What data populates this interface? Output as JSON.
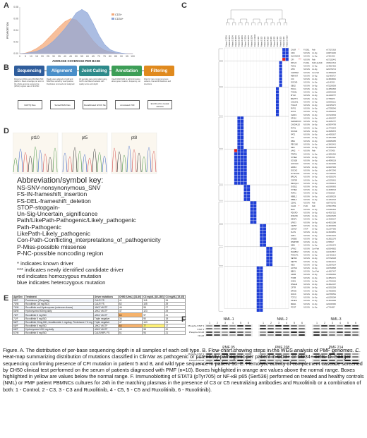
{
  "panels": {
    "A": "A",
    "B": "B",
    "C": "C",
    "D": "D",
    "E": "E",
    "F": "F"
  },
  "chart_data": {
    "type": "area",
    "xlabel": "AVERAGE COVERAGE PER BASE",
    "ylabel": "PROPORTION",
    "x": [
      0,
      5,
      10,
      15,
      20,
      25,
      30,
      35,
      40,
      45,
      50,
      55,
      60,
      65,
      70,
      75,
      80,
      85,
      90,
      95,
      100
    ],
    "ylim": [
      0,
      0.08
    ],
    "yticks": [
      "0.08",
      "0.06",
      "0.04",
      "0.02",
      "0.00"
    ],
    "xticks": [
      "0",
      "5",
      "10",
      "15",
      "20",
      "25",
      "30",
      "35",
      "40",
      "45",
      "50",
      "55",
      "60",
      "65",
      "70",
      "75",
      "80",
      "85",
      "90",
      "95",
      "100"
    ],
    "series": [
      {
        "name": "CD3+",
        "color": "#f4a97a",
        "values": [
          0,
          0.001,
          0.004,
          0.009,
          0.016,
          0.026,
          0.036,
          0.046,
          0.055,
          0.06,
          0.058,
          0.048,
          0.035,
          0.022,
          0.012,
          0.006,
          0.003,
          0.001,
          0,
          0,
          0
        ]
      },
      {
        "name": "CD34+",
        "color": "#8fa7d8",
        "values": [
          0,
          0.0005,
          0.002,
          0.004,
          0.008,
          0.014,
          0.022,
          0.032,
          0.043,
          0.056,
          0.07,
          0.076,
          0.07,
          0.052,
          0.032,
          0.016,
          0.007,
          0.003,
          0.001,
          0,
          0
        ]
      }
    ]
  },
  "workflow": {
    "steps": [
      {
        "label": "Sequencing",
        "color": "#2f5d9c",
        "text": "Paired end DNA using BGISEQ-500 platform. Mean coverage per exon in the whole-genome sequencing (WGS) regions was of 40-150x"
      },
      {
        "label": "Alignment",
        "color": "#4a8fc9",
        "text": "Reads were aligned to hg19 and BAM files sorted by read position, Duplicates removed and realigned"
      },
      {
        "label": "Joint Calling",
        "color": "#2e8b8b",
        "text": "All samples were joint called using GATK and filtered variants with quality score and depth"
      },
      {
        "label": "Annotation",
        "color": "#3d9e57",
        "text": "Used ANNOVAR to add information about gene, location, frequency, etc."
      },
      {
        "label": "Filtering",
        "color": "#e08a1e",
        "text": "Filter for rare nonsynonymous variants, frameshift deletions and insertions"
      }
    ],
    "outputs": [
      "FASTQ files",
      "Sorted BAM files",
      "Recalibrated GVCF file",
      "Annotated VCF",
      "Enriched for causal variants"
    ]
  },
  "sanger": {
    "labels": [
      "pt10",
      "pt5",
      "pt8"
    ]
  },
  "key": {
    "title": "Abbreviation/symbol key:",
    "lines": [
      "NS-SNV-nonsynonymous_SNV",
      "FS-IN-frameshift_insertion",
      "FS-DEL-frameshift_deletion",
      "STOP-stopgain-",
      "Un-Sig-Uncertain_significance",
      "Path/LikePath-Pathogenic/Likely_pathogenic",
      "Path-Pathogenic",
      "LikePath-Likely_pathogenic",
      "Con-Path-Conflicting_interpretations_of_pathogenicity",
      "P-Miss-possible missense",
      "P-NC-possible noncoding region"
    ],
    "notes": [
      "* indicates known driver",
      "*** indicates newly identified candidate driver",
      "red indicates homozygous mutation",
      "blue indicates heterozygous mutation"
    ]
  },
  "heatmap": {
    "columns": [
      "Patient 1 CD34",
      "Patient 2 CD34",
      "Patient 3 CD34",
      "Patient 4 CD34",
      "Patient 5 CD34",
      "Patient 6 CD34",
      "Patient 7 CD34",
      "Patient 8 CD34",
      "Patient 9 CD34",
      "Patient 10 CD34",
      "Patient 1 CD3",
      "Patient 2 CD3",
      "Patient 3 CD3",
      "Patient 4 CD3",
      "Patient 5 CD3",
      "Patient 6 CD3",
      "Patient 7 CD3",
      "Patient 8 CD3",
      "Patient 9 CD3",
      "Patient 10 CD3"
    ],
    "blue": "#1f3fd6",
    "red": "#e02222",
    "genes": [
      "CALR",
      "CDC",
      "SLC25A44",
      "CFI",
      "RPL22",
      "TDG1",
      "ATM",
      "CHRNA6",
      "RBPJK7",
      "CIC",
      "DOCK9",
      "SBS2",
      "POLG",
      "TONSL",
      "MYLK",
      "BARTYI",
      "COL5A1",
      "TOLLIP",
      "RYR1",
      "RYR1",
      "U2AF1",
      "SP110",
      "SH3GRCC3",
      "CACNA1G",
      "RYR1",
      "NCOA3",
      "FAT1",
      "CIC",
      "DBH",
      "PEX100",
      "NES",
      "JAK2",
      "TRIP11",
      "SYNE2",
      "SCN1B",
      "HOXA10",
      "GRIK4",
      "DOCK2",
      "DYNC1H1",
      "BRCA2",
      "CSF3R",
      "RECQL4",
      "DIS3L2",
      "SYNE2",
      "IRAK1",
      "NBEL2",
      "NBEL2",
      "CDH1",
      "CALR",
      "BLM",
      "PDGFD",
      "ZNF236",
      "DEAF1",
      "LRIG3",
      "CEP57",
      "CDH17",
      "FLCN",
      "LRP1",
      "SH2B3",
      "DNMT3B",
      "NEB",
      "LPIN2",
      "RHABF2",
      "PHACT1",
      "SETD2",
      "SEPT9",
      "NES",
      "ACTN2",
      "BBS1",
      "AFDB",
      "TNXB",
      "GSE1",
      "DNAH3",
      "CFTR",
      "EP300",
      "DOCK",
      "TCF12",
      "PKHD1",
      "MEN1",
      "PCNT"
    ],
    "details": [
      [
        "FS-DEL",
        "Path",
        "rs773371618"
      ],
      [
        "NS-SNV",
        "Un-Sig",
        "rs368742180"
      ],
      [
        "NS-SNV",
        "Un-Sig",
        "rs73013418"
      ],
      [
        "NS-SNV",
        "Path",
        "rs371315441"
      ],
      [
        "FS-DEL",
        "Path/LikePath",
        "rs565221644"
      ],
      [
        "NS-SNV",
        "Un-Sig",
        "rs145517815"
      ],
      [
        "NS-SNV",
        "Un-Sig",
        "rs201762714"
      ],
      [
        "NS-SNV",
        "Con-Path",
        "rs139669225"
      ],
      [
        "NS-SNV",
        "Un-Sig",
        "rs114995727"
      ],
      [
        "NS-SNV",
        "Un-Sig",
        "rs138948991"
      ],
      [
        "NS-SNV",
        "Un-Sig",
        "rs11462910"
      ],
      [
        "NS-SNV",
        "Un-Sig",
        "rs752269508"
      ],
      [
        "NS-SNV",
        "Un-Sig",
        "rs149564836"
      ],
      [
        "NS-SNV",
        "Un-Sig",
        "rs565932188"
      ],
      [
        "NS-SNV",
        "Un-Sig",
        "rs141903757"
      ],
      [
        "NS-SNV",
        "Un-Sig",
        "rs77966676"
      ],
      [
        "NS-SNV",
        "Un-Sig",
        "rs200692211"
      ],
      [
        "NS-SNV",
        "Un-Sig",
        "rs115456175"
      ],
      [
        "NS-SNV",
        "Un-Sig",
        "rs372955946"
      ],
      [
        "NS-SNV",
        "Un-Sig",
        "rs126593432"
      ],
      [
        "NS-SNV",
        "Un-Sig",
        "rs371246329"
      ],
      [
        "NS-SNV",
        "Un-Sig",
        "rs146662297"
      ],
      [
        "NS-SNV",
        "Un-Sig",
        "rs142051757"
      ],
      [
        "NS-SNV",
        "Un-Sig",
        "rs199974789"
      ],
      [
        "NS-SNV",
        "Un-Sig",
        "rs147723644"
      ],
      [
        "NS-SNV",
        "Un-Sig",
        "rs139056675"
      ],
      [
        "NS-SNV",
        "Un-Sig",
        "rs144592637"
      ],
      [
        "NS-SNV",
        "Un-Sig",
        "rs146574688"
      ],
      [
        "NS-SNV",
        "Un-Sig",
        "rs369954955"
      ],
      [
        "NS-SNV",
        "Un-Sig",
        "rs138419401"
      ],
      [
        "NS-SNV",
        "Un-Sig",
        "rs139969128"
      ],
      [
        "NS-SNV",
        "Path",
        "rs77375493"
      ],
      [
        "NS-SNV",
        "Un-Sig",
        "rs138551506"
      ],
      [
        "NS-SNV",
        "Un-Sig",
        "rs75487206"
      ],
      [
        "NS-SNV",
        "Un-Sig",
        "rs148990138"
      ],
      [
        "NS-SNV",
        "Un-Sig",
        "rs140242084"
      ],
      [
        "NS-SNV",
        "Un-Sig",
        "rs193187466"
      ],
      [
        "NS-SNV",
        "Un-Sig",
        "rs145472945"
      ],
      [
        "NS-SNV",
        "Un-Sig",
        "rs377966381"
      ],
      [
        "NS-SNV",
        "Un-Sig",
        "rs142553076"
      ],
      [
        "NS-SNV",
        "Un-Sig",
        "rs151293601"
      ],
      [
        "NS-SNV",
        "Un-Sig",
        "rs372669414"
      ],
      [
        "NS-SNV",
        "Un-Sig",
        "rs181690863"
      ],
      [
        "NS-SNV",
        "Un-Sig",
        "rs146089343"
      ],
      [
        "NS-SNV",
        "Un-Sig",
        "rs75602028"
      ],
      [
        "NS-SNV",
        "Un-Sig",
        "rs201859218"
      ],
      [
        "NS-SNV",
        "Un-Sig",
        "rs144632323"
      ],
      [
        "NS-SNV",
        "Path",
        "rs587782750"
      ],
      [
        "FS-IN",
        "Path",
        "rs765470509"
      ],
      [
        "NS-SNV",
        "Un-Sig",
        "rs781851815"
      ],
      [
        "NS-SNV",
        "Un-Sig",
        "rs149017522"
      ],
      [
        "NS-SNV",
        "Un-Sig",
        "rs200225265"
      ],
      [
        "NS-SNV",
        "Un-Sig",
        "rs146382167"
      ],
      [
        "NS-SNV",
        "Un-Sig",
        "rs148191068"
      ],
      [
        "NS-SNV",
        "Un-Sig",
        "rs148196489"
      ],
      [
        "STOP",
        "Un-Sig",
        "rs121977556"
      ],
      [
        "NS-SNV",
        "Un-Sig",
        "rs139049851"
      ],
      [
        "NS-SNV",
        "Un-Sig",
        "rs150442216"
      ],
      [
        "NS-SNV",
        "Un-Sig",
        "rs138521079"
      ],
      [
        "NS-SNV",
        "Un-Sig",
        "rs7658617"
      ],
      [
        "NS-SNV",
        "Un-Sig",
        "rs121913674"
      ],
      [
        "NS-SNV",
        "Con-Path",
        "rs200649852"
      ],
      [
        "NS-SNV",
        "Un-Sig",
        "rs116025547"
      ],
      [
        "NS-SNV",
        "Un-Sig",
        "rs117362213"
      ],
      [
        "NS-SNV",
        "Un-Sig",
        "rs767326168"
      ],
      [
        "NS-SNV",
        "Un-Sig",
        "rs199442131"
      ],
      [
        "NS-SNV",
        "Un-Sig",
        "rs120879164"
      ],
      [
        "NS-SNV",
        "Un-Sig",
        "rs367638868"
      ],
      [
        "NS-SNV",
        "Con-Path",
        "rs146617407"
      ],
      [
        "NS-SNV",
        "Un-Sig",
        "rs720893862"
      ],
      [
        "NS-SNV",
        "Un-Sig",
        "rs138516071"
      ],
      [
        "NS-SNV",
        "Un-Sig",
        "rs147932186"
      ],
      [
        "NS-SNV",
        "Un-Sig",
        "rs149421007"
      ],
      [
        "NS-SNV",
        "Un-Sig",
        "rs193922508"
      ],
      [
        "NS-SNV",
        "Un-Sig",
        "rs144838906"
      ],
      [
        "NS-SNV",
        "Un-Sig",
        "rs187655581"
      ],
      [
        "NS-SNV",
        "Un-Sig",
        "rs181593084"
      ],
      [
        "NS-SNV",
        "Un-Sig",
        "rs145040968"
      ],
      [
        "NS-SNV",
        "Un-Sig",
        "rs202015960"
      ],
      [
        "NS-SNV",
        "Un-Sig",
        "rs77464867"
      ],
      [
        "NS-SNV",
        "Un-Sig",
        "rs149942437"
      ]
    ],
    "groups": [
      {
        "start": 0,
        "count": 4,
        "cols": [
          18,
          19
        ],
        "reds": [
          [
            3,
            18
          ]
        ]
      },
      {
        "start": 4,
        "count": 8,
        "cols": [
          17
        ],
        "reds": []
      },
      {
        "start": 12,
        "count": 9,
        "cols": [
          16
        ],
        "reds": []
      },
      {
        "start": 21,
        "count": 10,
        "cols": [
          4,
          5
        ],
        "reds": []
      },
      {
        "start": 31,
        "count": 11,
        "cols": [
          3,
          4,
          5,
          6
        ],
        "reds": [
          [
            0,
            3
          ]
        ]
      },
      {
        "start": 42,
        "count": 5,
        "cols": [
          6,
          7
        ],
        "reds": []
      },
      {
        "start": 47,
        "count": 7,
        "cols": [
          8,
          9
        ],
        "reds": []
      },
      {
        "start": 54,
        "count": 7,
        "cols": [
          11,
          12
        ],
        "reds": []
      },
      {
        "start": 61,
        "count": 6,
        "cols": [
          13,
          14
        ],
        "reds": [
          [
            6,
            14
          ]
        ]
      },
      {
        "start": 67,
        "count": 14,
        "cols": [
          10,
          11
        ],
        "reds": []
      }
    ]
  },
  "tableE": {
    "headers": [
      "Age/Sex",
      "Treatment",
      "Driver mutations",
      "CH50 (U/mL) [31-60]",
      "C3 mg/dL [82-185]",
      "C4 mg/dL [15-45]"
    ],
    "rows": [
      [
        "55/F",
        "Prednisone (10mg/day)",
        "CALR FS",
        "41",
        "118",
        "34"
      ],
      [
        "70/M",
        "Ruxolitinib (15 mg BID)",
        "CALR FS",
        "52",
        "105",
        "29"
      ],
      [
        "70/M",
        "Ruxolitinib and Hydroxyurea (unknown doses)",
        "JAK2 V617F",
        "46",
        "95",
        "27"
      ],
      [
        "65/M",
        "Hydroxyurea 500mg daily",
        "JAK2 V617F",
        "47",
        "123",
        "29"
      ],
      [
        "75/F",
        "Ruxolitinib 5 mg BID",
        "JAK2 V617F",
        "64",
        "97",
        "21"
      ],
      [
        "71/F",
        "Ruxolitinib 5 mg BID",
        "Triple negative",
        "36",
        "90",
        "19"
      ],
      [
        "56/F",
        "Ruxolitinib 20mg BID, lenalidomide 1 mg/day, Prednisone 7.5 mg",
        "Triple negative",
        "47",
        "143",
        "26"
      ],
      [
        "66/F",
        "Ruxolitinib 5 mg BID",
        "JAK2 V617F",
        "64",
        "77",
        "17"
      ],
      [
        "65/F",
        "Hydroxyurea 1000 mg daily",
        "JAK2 V617F",
        "43",
        "98",
        "20"
      ],
      [
        "67/M",
        "Ruxolitinib 5 mg BID",
        "CALR/MPL FS",
        "51",
        "94",
        "21"
      ]
    ]
  },
  "westerns": [
    {
      "title": "NML-1",
      "lanes": [
        "1",
        "2",
        "3",
        "4",
        "5",
        "6"
      ]
    },
    {
      "title": "NML-2",
      "lanes": [
        "1",
        "2",
        "3",
        "4",
        "5",
        "6"
      ]
    },
    {
      "title": "NML-3",
      "lanes": [
        "1",
        "2",
        "3",
        "4",
        "5",
        "6"
      ]
    },
    {
      "title": "PMF 05",
      "lanes": [
        "1",
        "2",
        "3",
        "4",
        "5",
        "6"
      ]
    },
    {
      "title": "PMF 208",
      "lanes": [
        "1",
        "2",
        "3",
        "4",
        "5",
        "6"
      ]
    },
    {
      "title": "PMF 214",
      "lanes": [
        "1",
        "2",
        "3",
        "4",
        "5",
        "6"
      ]
    }
  ],
  "wb_rows": [
    "Phospho-STAT 3",
    "STAT 3",
    "Phospho-NF κB",
    "NF-κB"
  ],
  "caption": "Figure. A. The distribution of per-base sequencing depth in all samples of each cell type. B. Flow-chart showing steps in the WGS analysis of PMF genomes. C. Heat-map summarizing distribution of mutations classified in ClinVar as pathogenic or potentially pathogenic per patient in CD3+ or CD34+ cells. D. Sanger sequencing confirming presence of CFI mutation in patient 5 and 8, and wild type sequence in patient 10. E. Hemolytic activity of complement cascade screened by CH50 clinical test performed on the serum of patients diagnosed with PMF (n=10). Boxes highlighted in orange are values above the normal range. Boxes highlighted in yellow are values below the normal range. F. Immunoblotting of STAT3 (pTyr705) or NF-κB p65 (Ser536) performed on treated and healthy controls (NML) or PMF patient PBMNCs cultures for 24h in the matching plasmas in the presence of C3 or C5 neutralizing antibodies and Ruxolitinib or a combination of both: 1 - Control, 2 - C3, 3 - C3 and Ruxolitinib, 4 - C5, 5 - C5 and Ruxolitinib, 6 - Ruxolitinib)."
}
